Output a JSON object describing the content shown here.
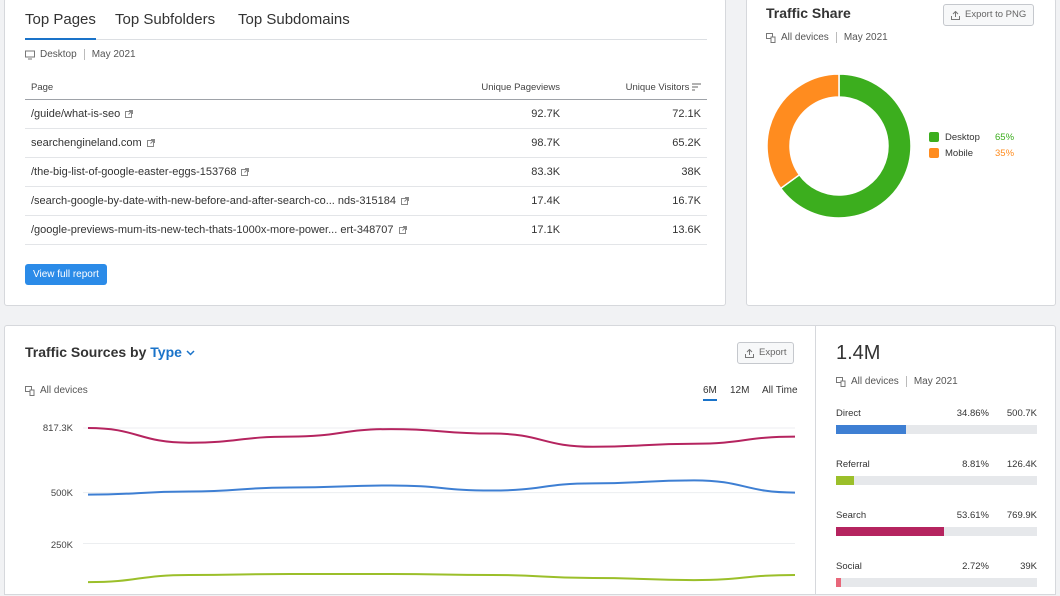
{
  "top_pages": {
    "tabs": [
      "Top Pages",
      "Top Subfolders",
      "Top Subdomains"
    ],
    "device": "Desktop",
    "date": "May 2021",
    "columns": [
      "Page",
      "Unique Pageviews",
      "Unique Visitors"
    ],
    "rows": [
      {
        "page": "/guide/what-is-seo",
        "pageviews": "92.7K",
        "visitors": "72.1K"
      },
      {
        "page": "searchengineland.com",
        "pageviews": "98.7K",
        "visitors": "65.2K"
      },
      {
        "page": "/the-big-list-of-google-easter-eggs-153768",
        "pageviews": "83.3K",
        "visitors": "38K"
      },
      {
        "page": "/search-google-by-date-with-new-before-and-after-search-co... nds-315184",
        "pageviews": "17.4K",
        "visitors": "16.7K"
      },
      {
        "page": "/google-previews-mum-its-new-tech-thats-1000x-more-power... ert-348707",
        "pageviews": "17.1K",
        "visitors": "13.6K"
      }
    ],
    "view_full_report": "View full report"
  },
  "traffic_share": {
    "title": "Traffic Share",
    "export_label": "Export to PNG",
    "device": "All devices",
    "date": "May 2021",
    "legend": [
      {
        "name": "Desktop",
        "pct": "65%",
        "value": 0.65,
        "color": "#3cae1e"
      },
      {
        "name": "Mobile",
        "pct": "35%",
        "value": 0.35,
        "color": "#ff8c1f"
      }
    ]
  },
  "traffic_sources": {
    "title_prefix": "Traffic Sources by",
    "title_link": "Type",
    "export_label": "Export",
    "device": "All devices",
    "periods": [
      "6M",
      "12M",
      "All Time"
    ],
    "active_period": "6M",
    "y_ticks": [
      "817.3K",
      "500K",
      "250K"
    ]
  },
  "chart_data": {
    "type": "line",
    "y_ticks": [
      817300,
      500000,
      250000
    ],
    "ylim": [
      0,
      817300
    ],
    "grid": true,
    "series": [
      {
        "color": "#b5245f",
        "values": [
          817300,
          745000,
          775000,
          812000,
          790000,
          725000,
          740000,
          775000
        ]
      },
      {
        "color": "#3e7fd3",
        "values": [
          490000,
          505000,
          525000,
          535000,
          510000,
          545000,
          560000,
          500000
        ]
      },
      {
        "color": "#9bbf2a",
        "values": [
          60000,
          95000,
          100000,
          100000,
          95000,
          80000,
          70000,
          95000
        ]
      }
    ]
  },
  "summary": {
    "total": "1.4M",
    "device": "All devices",
    "date": "May 2021",
    "sources": [
      {
        "name": "Direct",
        "pct": "34.86%",
        "value": "500.7K",
        "fraction": 0.3486,
        "color": "#3e7fd3"
      },
      {
        "name": "Referral",
        "pct": "8.81%",
        "value": "126.4K",
        "fraction": 0.0881,
        "color": "#9bbf2a"
      },
      {
        "name": "Search",
        "pct": "53.61%",
        "value": "769.9K",
        "fraction": 0.5361,
        "color": "#b5245f"
      },
      {
        "name": "Social",
        "pct": "2.72%",
        "value": "39K",
        "fraction": 0.0272,
        "color": "#e8677a"
      }
    ]
  }
}
